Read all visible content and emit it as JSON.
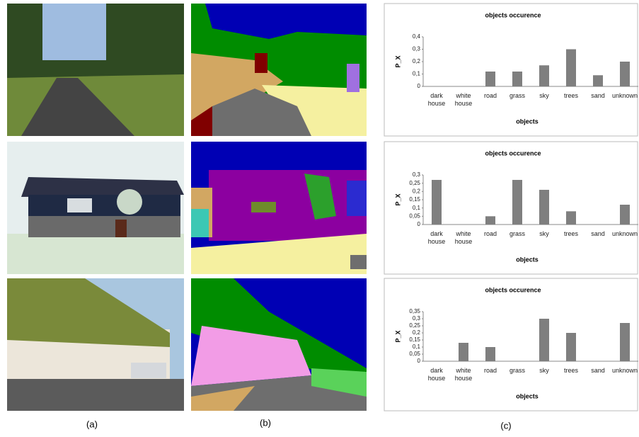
{
  "chart_data": [
    {
      "type": "bar",
      "title": "objects occurence",
      "x_label": "objects",
      "y_label": "P_X",
      "color": "#7f7f7f",
      "categories": [
        "dark house",
        "white house",
        "road",
        "grass",
        "sky",
        "trees",
        "sand",
        "unknown"
      ],
      "values": [
        0,
        0,
        0.12,
        0.12,
        0.17,
        0.3,
        0.09,
        0.2
      ],
      "ylim": [
        0,
        0.4
      ],
      "yticks": [
        0,
        {
          "value": 0.1,
          "label": "0,1"
        },
        {
          "value": 0.2,
          "label": "0,2"
        },
        {
          "value": 0.3,
          "label": "0,3"
        },
        {
          "value": 0.4,
          "label": "0,4"
        }
      ]
    },
    {
      "type": "bar",
      "title": "objects occurence",
      "x_label": "objects",
      "y_label": "P_X",
      "color": "#7f7f7f",
      "categories": [
        "dark house",
        "white house",
        "road",
        "grass",
        "sky",
        "trees",
        "sand",
        "unknown"
      ],
      "values": [
        0.27,
        0,
        0.05,
        0.27,
        0.21,
        0.08,
        0,
        0.12
      ],
      "ylim": [
        0,
        0.3
      ],
      "yticks": [
        0,
        {
          "value": 0.05,
          "label": "0,05"
        },
        {
          "value": 0.1,
          "label": "0,1"
        },
        {
          "value": 0.15,
          "label": "0,15"
        },
        {
          "value": 0.2,
          "label": "0,2"
        },
        {
          "value": 0.25,
          "label": "0,25"
        },
        {
          "value": 0.3,
          "label": "0,3"
        }
      ]
    },
    {
      "type": "bar",
      "title": "objects occurence",
      "x_label": "objects",
      "y_label": "P_X",
      "color": "#7f7f7f",
      "categories": [
        "dark house",
        "white house",
        "road",
        "grass",
        "sky",
        "trees",
        "sand",
        "unknown"
      ],
      "values": [
        0,
        0.13,
        0.1,
        0,
        0.3,
        0.2,
        0,
        0.27
      ],
      "ylim": [
        0,
        0.35
      ],
      "yticks": [
        0,
        {
          "value": 0.05,
          "label": "0,05"
        },
        {
          "value": 0.1,
          "label": "0,1"
        },
        {
          "value": 0.15,
          "label": "0,15"
        },
        {
          "value": 0.2,
          "label": "0,2"
        },
        {
          "value": 0.25,
          "label": "0,25"
        },
        {
          "value": 0.3,
          "label": "0,3"
        },
        {
          "value": 0.35,
          "label": "0,35"
        }
      ]
    }
  ],
  "captions": [
    "(a)",
    "(b)",
    "(c)"
  ]
}
